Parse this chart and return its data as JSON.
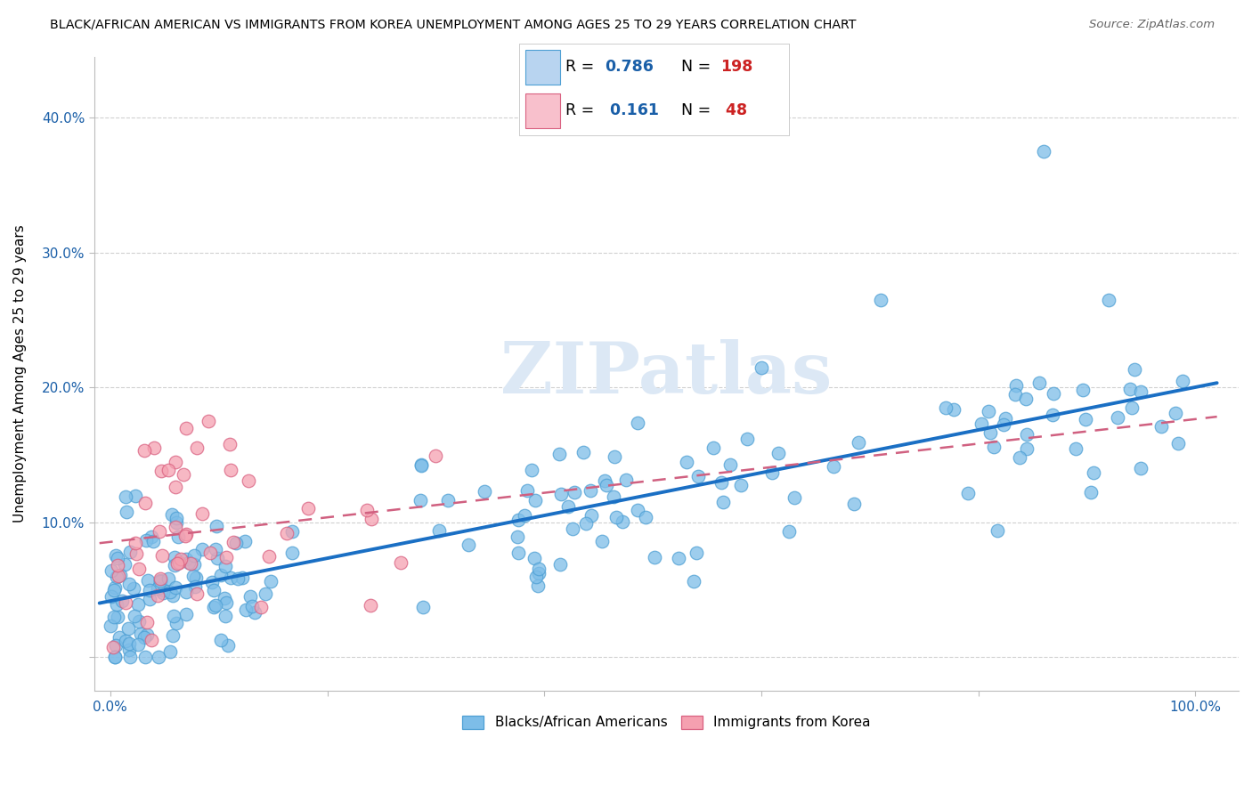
{
  "title": "BLACK/AFRICAN AMERICAN VS IMMIGRANTS FROM KOREA UNEMPLOYMENT AMONG AGES 25 TO 29 YEARS CORRELATION CHART",
  "source": "Source: ZipAtlas.com",
  "ylabel": "Unemployment Among Ages 25 to 29 years",
  "blue_R": 0.786,
  "blue_N": 198,
  "pink_R": 0.161,
  "pink_N": 48,
  "blue_color": "#7dbde8",
  "blue_edge": "#4d9fd4",
  "pink_color": "#f5a0b0",
  "pink_edge": "#d96080",
  "trend_blue": "#1a6fc4",
  "trend_pink": "#d06080",
  "background": "#ffffff",
  "watermark": "ZIPatlas",
  "watermark_color": "#dce8f5",
  "legend_box_blue": "#b8d4f0",
  "legend_box_pink": "#f8c0cc",
  "axis_label_color": "#1a5fa8",
  "grid_color": "#d0d0d0",
  "label_fontsize": 11,
  "legend_text_color": "#1a5fa8",
  "legend_N_color": "#cc2222"
}
